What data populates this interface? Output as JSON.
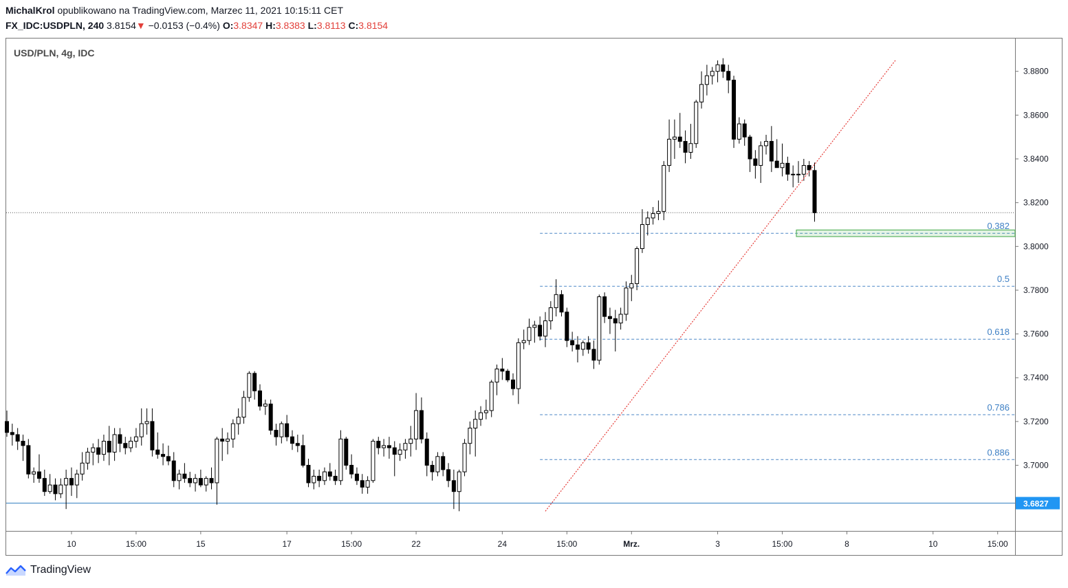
{
  "header": {
    "author": "MichalKrol",
    "published": "opublikowano na TradingView.com, Marzec 11, 2021 10:15:11 CET",
    "symbol": "FX_IDC:USDPLN, 240",
    "last": "3.8154",
    "arrow": "▼",
    "change": "−0.0153 (−0.4%)",
    "o_label": "O:",
    "o_value": "3.8347",
    "h_label": "H:",
    "h_value": "3.8383",
    "l_label": "L:",
    "l_value": "3.8113",
    "c_label": "C:",
    "c_value": "3.8154"
  },
  "brand": {
    "name": "TradingView"
  },
  "chart_data": {
    "type": "candlestick",
    "title": "USD/PLN, 4g, IDC",
    "y_range": [
      3.67,
      3.895
    ],
    "y_ticks": [
      "3.8800",
      "3.8600",
      "3.8400",
      "3.8200",
      "3.8000",
      "3.7800",
      "3.7600",
      "3.7400",
      "3.7200",
      "3.7000"
    ],
    "x_ticks": [
      {
        "label": "10",
        "index": 12
      },
      {
        "label": "15:00",
        "index": 24
      },
      {
        "label": "15",
        "index": 36
      },
      {
        "label": "17",
        "index": 52
      },
      {
        "label": "15:00",
        "index": 64
      },
      {
        "label": "22",
        "index": 76
      },
      {
        "label": "24",
        "index": 92
      },
      {
        "label": "15:00",
        "index": 104
      },
      {
        "label": "Mrz.",
        "index": 116
      },
      {
        "label": "3",
        "index": 132
      },
      {
        "label": "15:00",
        "index": 144
      },
      {
        "label": "8",
        "index": 156
      },
      {
        "label": "10",
        "index": 172
      },
      {
        "label": "15:00",
        "index": 184
      }
    ],
    "price_label": "3.6827",
    "support_level": 3.6827,
    "last_price": 3.8154,
    "fib_levels": [
      {
        "label": "0.382",
        "value": 3.806
      },
      {
        "label": "0.5",
        "value": 3.7818
      },
      {
        "label": "0.618",
        "value": 3.7576
      },
      {
        "label": "0.786",
        "value": 3.7231
      },
      {
        "label": "0.886",
        "value": 3.7026
      }
    ],
    "zone": {
      "from_index": 147,
      "top": 3.8075,
      "bottom": 3.8045
    },
    "trendline": {
      "from_index": 100,
      "from_value": 3.679,
      "to_index": 165,
      "to_value": 3.885
    },
    "candles": [
      [
        3.72,
        3.725,
        3.713,
        3.715
      ],
      [
        3.715,
        3.719,
        3.709,
        3.714
      ],
      [
        3.714,
        3.717,
        3.707,
        3.711
      ],
      [
        3.711,
        3.714,
        3.702,
        3.709
      ],
      [
        3.709,
        3.712,
        3.694,
        3.696
      ],
      [
        3.696,
        3.699,
        3.692,
        3.697
      ],
      [
        3.697,
        3.705,
        3.692,
        3.694
      ],
      [
        3.694,
        3.698,
        3.686,
        3.688
      ],
      [
        3.688,
        3.696,
        3.687,
        3.691
      ],
      [
        3.691,
        3.694,
        3.684,
        3.687
      ],
      [
        3.687,
        3.694,
        3.685,
        3.691
      ],
      [
        3.691,
        3.698,
        3.68,
        3.694
      ],
      [
        3.694,
        3.699,
        3.686,
        3.691
      ],
      [
        3.691,
        3.698,
        3.685,
        3.696
      ],
      [
        3.696,
        3.706,
        3.693,
        3.701
      ],
      [
        3.701,
        3.708,
        3.698,
        3.706
      ],
      [
        3.706,
        3.71,
        3.7,
        3.708
      ],
      [
        3.708,
        3.712,
        3.701,
        3.705
      ],
      [
        3.705,
        3.714,
        3.702,
        3.711
      ],
      [
        3.711,
        3.718,
        3.7,
        3.706
      ],
      [
        3.706,
        3.717,
        3.702,
        3.714
      ],
      [
        3.714,
        3.717,
        3.706,
        3.71
      ],
      [
        3.71,
        3.713,
        3.705,
        3.708
      ],
      [
        3.708,
        3.713,
        3.706,
        3.711
      ],
      [
        3.711,
        3.717,
        3.708,
        3.713
      ],
      [
        3.713,
        3.726,
        3.709,
        3.719
      ],
      [
        3.719,
        3.726,
        3.714,
        3.72
      ],
      [
        3.72,
        3.726,
        3.704,
        3.707
      ],
      [
        3.707,
        3.715,
        3.703,
        3.705
      ],
      [
        3.705,
        3.71,
        3.7,
        3.704
      ],
      [
        3.704,
        3.709,
        3.7,
        3.702
      ],
      [
        3.702,
        3.706,
        3.69,
        3.693
      ],
      [
        3.693,
        3.698,
        3.689,
        3.696
      ],
      [
        3.696,
        3.701,
        3.692,
        3.694
      ],
      [
        3.694,
        3.697,
        3.69,
        3.692
      ],
      [
        3.692,
        3.696,
        3.688,
        3.694
      ],
      [
        3.694,
        3.698,
        3.69,
        3.691
      ],
      [
        3.691,
        3.695,
        3.688,
        3.694
      ],
      [
        3.694,
        3.699,
        3.689,
        3.692
      ],
      [
        3.692,
        3.713,
        3.682,
        3.712
      ],
      [
        3.712,
        3.717,
        3.702,
        3.711
      ],
      [
        3.711,
        3.715,
        3.705,
        3.712
      ],
      [
        3.712,
        3.721,
        3.708,
        3.719
      ],
      [
        3.719,
        3.726,
        3.714,
        3.722
      ],
      [
        3.722,
        3.734,
        3.719,
        3.731
      ],
      [
        3.731,
        3.743,
        3.729,
        3.742
      ],
      [
        3.742,
        3.743,
        3.73,
        3.734
      ],
      [
        3.734,
        3.737,
        3.725,
        3.727
      ],
      [
        3.727,
        3.73,
        3.723,
        3.728
      ],
      [
        3.728,
        3.73,
        3.714,
        3.716
      ],
      [
        3.716,
        3.719,
        3.709,
        3.713
      ],
      [
        3.713,
        3.72,
        3.71,
        3.719
      ],
      [
        3.719,
        3.723,
        3.711,
        3.713
      ],
      [
        3.713,
        3.716,
        3.707,
        3.71
      ],
      [
        3.71,
        3.714,
        3.706,
        3.709
      ],
      [
        3.709,
        3.714,
        3.699,
        3.7
      ],
      [
        3.7,
        3.703,
        3.69,
        3.692
      ],
      [
        3.692,
        3.698,
        3.689,
        3.695
      ],
      [
        3.695,
        3.698,
        3.69,
        3.693
      ],
      [
        3.693,
        3.699,
        3.691,
        3.697
      ],
      [
        3.697,
        3.701,
        3.693,
        3.695
      ],
      [
        3.695,
        3.698,
        3.691,
        3.693
      ],
      [
        3.693,
        3.716,
        3.691,
        3.712
      ],
      [
        3.712,
        3.713,
        3.698,
        3.7
      ],
      [
        3.7,
        3.705,
        3.694,
        3.696
      ],
      [
        3.696,
        3.699,
        3.691,
        3.693
      ],
      [
        3.693,
        3.696,
        3.687,
        3.69
      ],
      [
        3.69,
        3.695,
        3.687,
        3.693
      ],
      [
        3.693,
        3.712,
        3.692,
        3.711
      ],
      [
        3.711,
        3.713,
        3.705,
        3.708
      ],
      [
        3.708,
        3.712,
        3.704,
        3.709
      ],
      [
        3.709,
        3.713,
        3.703,
        3.708
      ],
      [
        3.708,
        3.711,
        3.695,
        3.705
      ],
      [
        3.705,
        3.71,
        3.702,
        3.707
      ],
      [
        3.707,
        3.712,
        3.703,
        3.71
      ],
      [
        3.71,
        3.718,
        3.704,
        3.712
      ],
      [
        3.712,
        3.733,
        3.707,
        3.725
      ],
      [
        3.725,
        3.731,
        3.71,
        3.712
      ],
      [
        3.712,
        3.715,
        3.695,
        3.7
      ],
      [
        3.7,
        3.702,
        3.693,
        3.697
      ],
      [
        3.697,
        3.706,
        3.695,
        3.704
      ],
      [
        3.704,
        3.706,
        3.695,
        3.698
      ],
      [
        3.698,
        3.701,
        3.69,
        3.693
      ],
      [
        3.693,
        3.698,
        3.68,
        3.688
      ],
      [
        3.688,
        3.698,
        3.679,
        3.697
      ],
      [
        3.697,
        3.712,
        3.695,
        3.71
      ],
      [
        3.71,
        3.72,
        3.705,
        3.717
      ],
      [
        3.717,
        3.725,
        3.704,
        3.721
      ],
      [
        3.721,
        3.727,
        3.718,
        3.724
      ],
      [
        3.724,
        3.73,
        3.721,
        3.725
      ],
      [
        3.725,
        3.739,
        3.722,
        3.738
      ],
      [
        3.738,
        3.746,
        3.732,
        3.744
      ],
      [
        3.744,
        3.749,
        3.739,
        3.743
      ],
      [
        3.743,
        3.744,
        3.738,
        3.739
      ],
      [
        3.739,
        3.742,
        3.732,
        3.735
      ],
      [
        3.735,
        3.758,
        3.728,
        3.756
      ],
      [
        3.756,
        3.762,
        3.753,
        3.757
      ],
      [
        3.757,
        3.767,
        3.755,
        3.763
      ],
      [
        3.763,
        3.766,
        3.756,
        3.764
      ],
      [
        3.764,
        3.768,
        3.757,
        3.759
      ],
      [
        3.759,
        3.77,
        3.754,
        3.766
      ],
      [
        3.766,
        3.775,
        3.762,
        3.772
      ],
      [
        3.772,
        3.785,
        3.768,
        3.778
      ],
      [
        3.778,
        3.78,
        3.768,
        3.77
      ],
      [
        3.77,
        3.772,
        3.754,
        3.757
      ],
      [
        3.757,
        3.761,
        3.752,
        3.755
      ],
      [
        3.755,
        3.759,
        3.747,
        3.753
      ],
      [
        3.753,
        3.757,
        3.75,
        3.756
      ],
      [
        3.756,
        3.759,
        3.751,
        3.753
      ],
      [
        3.753,
        3.757,
        3.744,
        3.748
      ],
      [
        3.748,
        3.778,
        3.746,
        3.777
      ],
      [
        3.777,
        3.779,
        3.765,
        3.768
      ],
      [
        3.768,
        3.772,
        3.76,
        3.767
      ],
      [
        3.767,
        3.771,
        3.752,
        3.765
      ],
      [
        3.765,
        3.772,
        3.762,
        3.769
      ],
      [
        3.769,
        3.784,
        3.766,
        3.781
      ],
      [
        3.781,
        3.787,
        3.775,
        3.783
      ],
      [
        3.783,
        3.8,
        3.78,
        3.799
      ],
      [
        3.799,
        3.817,
        3.797,
        3.81
      ],
      [
        3.81,
        3.816,
        3.805,
        3.813
      ],
      [
        3.813,
        3.818,
        3.81,
        3.815
      ],
      [
        3.815,
        3.821,
        3.812,
        3.816
      ],
      [
        3.816,
        3.839,
        3.812,
        3.837
      ],
      [
        3.837,
        3.858,
        3.834,
        3.849
      ],
      [
        3.849,
        3.858,
        3.84,
        3.85
      ],
      [
        3.85,
        3.861,
        3.845,
        3.848
      ],
      [
        3.848,
        3.853,
        3.838,
        3.843
      ],
      [
        3.843,
        3.856,
        3.84,
        3.847
      ],
      [
        3.847,
        3.867,
        3.845,
        3.866
      ],
      [
        3.866,
        3.88,
        3.863,
        3.874
      ],
      [
        3.874,
        3.883,
        3.869,
        3.878
      ],
      [
        3.878,
        3.882,
        3.874,
        3.88
      ],
      [
        3.88,
        3.885,
        3.875,
        3.883
      ],
      [
        3.883,
        3.886,
        3.877,
        3.88
      ],
      [
        3.88,
        3.883,
        3.87,
        3.876
      ],
      [
        3.876,
        3.878,
        3.845,
        3.849
      ],
      [
        3.849,
        3.859,
        3.847,
        3.856
      ],
      [
        3.856,
        3.858,
        3.846,
        3.85
      ],
      [
        3.85,
        3.851,
        3.834,
        3.84
      ],
      [
        3.84,
        3.844,
        3.831,
        3.837
      ],
      [
        3.837,
        3.848,
        3.829,
        3.846
      ],
      [
        3.846,
        3.851,
        3.842,
        3.848
      ],
      [
        3.848,
        3.855,
        3.834,
        3.839
      ],
      [
        3.839,
        3.849,
        3.836,
        3.836
      ],
      [
        3.836,
        3.847,
        3.832,
        3.838
      ],
      [
        3.838,
        3.841,
        3.83,
        3.833
      ],
      [
        3.833,
        3.837,
        3.827,
        3.833
      ],
      [
        3.833,
        3.839,
        3.829,
        3.833
      ],
      [
        3.833,
        3.84,
        3.83,
        3.837
      ],
      [
        3.837,
        3.839,
        3.832,
        3.835
      ],
      [
        3.8347,
        3.8383,
        3.8113,
        3.8154
      ]
    ]
  }
}
